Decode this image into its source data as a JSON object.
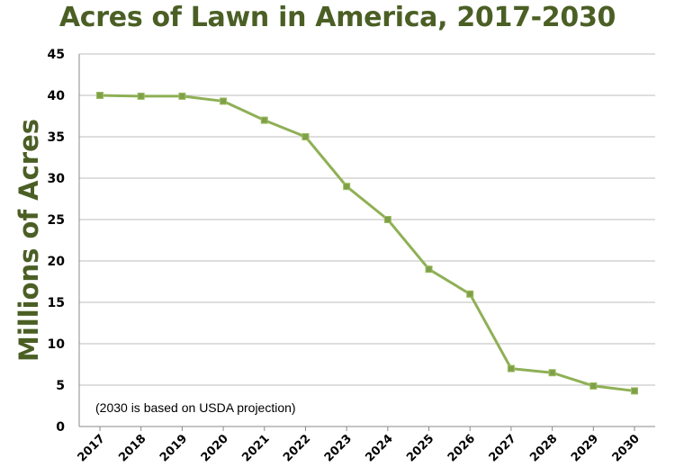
{
  "chart_data": {
    "type": "line",
    "title": "Acres of Lawn in America, 2017-2030",
    "xlabel": "",
    "ylabel": "Millions of Acres",
    "annotation": "(2030 is based on USDA projection)",
    "x": [
      "2017",
      "2018",
      "2019",
      "2020",
      "2021",
      "2022",
      "2023",
      "2024",
      "2025",
      "2026",
      "2027",
      "2028",
      "2029",
      "2030"
    ],
    "series": [
      {
        "values": [
          40,
          39.9,
          39.9,
          39.3,
          37,
          35,
          29,
          25,
          19,
          16,
          7,
          6.5,
          4.9,
          4.3
        ]
      }
    ],
    "ylim": [
      0,
      45
    ],
    "yticks": [
      0,
      5,
      10,
      15,
      20,
      25,
      30,
      35,
      40,
      45
    ],
    "grid": true,
    "legend": "none",
    "colors": {
      "line": "#8fb056",
      "marker": "#7fa048",
      "title": "#4b5f25"
    }
  }
}
